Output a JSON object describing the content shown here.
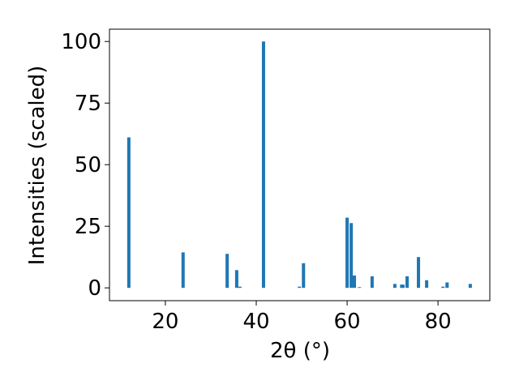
{
  "chart_data": {
    "type": "bar",
    "xlabel": "2θ (°)",
    "ylabel": "Intensities (scaled)",
    "x": [
      11.96,
      23.9,
      33.6,
      35.7,
      36.4,
      41.6,
      49.5,
      50.4,
      60.0,
      60.9,
      61.6,
      62.7,
      65.5,
      70.5,
      72.0,
      72.3,
      73.2,
      75.7,
      77.5,
      81.1,
      82.0,
      87.1
    ],
    "values": [
      61.1,
      14.4,
      13.8,
      7.2,
      0.5,
      100,
      0.5,
      10,
      28.5,
      26.3,
      5,
      0.3,
      4.7,
      1.6,
      1.3,
      1.3,
      4.7,
      12.5,
      3.1,
      0.5,
      2.2,
      1.6
    ],
    "color": "#1f77b4",
    "xlim": [
      7.7,
      91.4
    ],
    "xticks": [
      20,
      40,
      60,
      80
    ],
    "ylim": [
      -5.2,
      105
    ],
    "yticks": [
      0,
      25,
      50,
      75,
      100
    ]
  }
}
